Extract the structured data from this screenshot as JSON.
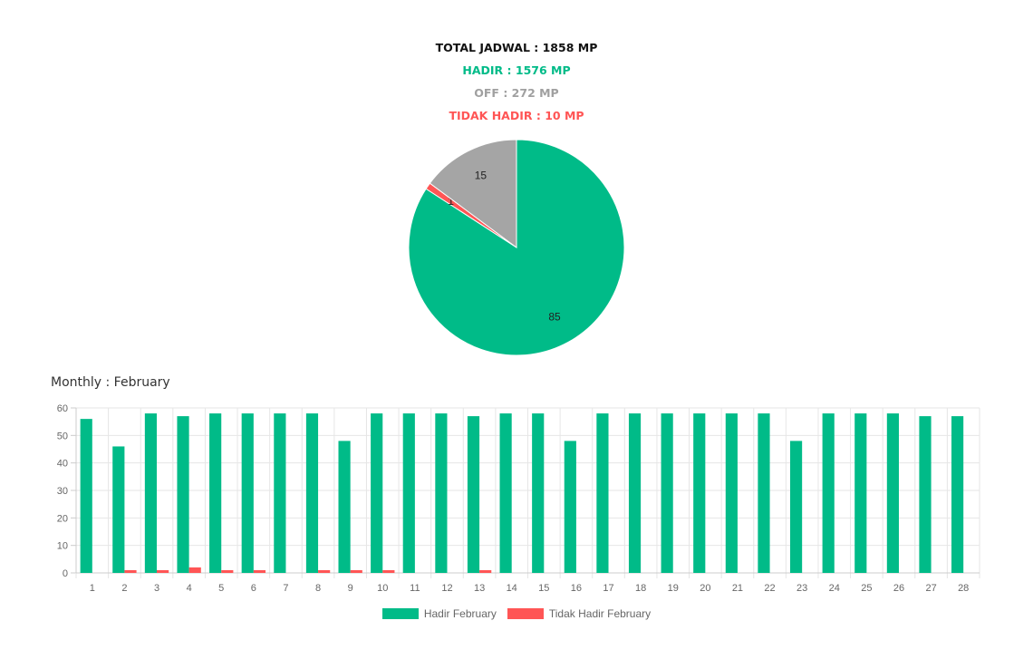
{
  "summary": {
    "total": "TOTAL JADWAL : 1858 MP",
    "hadir": "HADIR : 1576 MP",
    "off": "OFF : 272 MP",
    "tidak_hadir": "TIDAK HADIR : 10 MP"
  },
  "colors": {
    "total": "#111111",
    "hadir": "#00bb88",
    "off": "#a0a0a0",
    "tidak_hadir": "#ff5555"
  },
  "monthly_title": "Monthly : February",
  "chart_data": [
    {
      "type": "pie",
      "slices": [
        {
          "value": 85,
          "label": "85",
          "color": "#00bb88"
        },
        {
          "value": 1,
          "label": "1",
          "color": "#ff5555"
        },
        {
          "value": 15,
          "label": "15",
          "color": "#a5a5a5"
        }
      ]
    },
    {
      "type": "bar",
      "categories": [
        "1",
        "2",
        "3",
        "4",
        "5",
        "6",
        "7",
        "8",
        "9",
        "10",
        "11",
        "12",
        "13",
        "14",
        "15",
        "16",
        "17",
        "18",
        "19",
        "20",
        "21",
        "22",
        "23",
        "24",
        "25",
        "26",
        "27",
        "28"
      ],
      "series": [
        {
          "name": "Hadir February",
          "color": "#00bb88",
          "values": [
            56,
            46,
            58,
            57,
            58,
            58,
            58,
            58,
            48,
            58,
            58,
            58,
            57,
            58,
            58,
            48,
            58,
            58,
            58,
            58,
            58,
            58,
            48,
            58,
            58,
            58,
            57,
            57
          ]
        },
        {
          "name": "Tidak Hadir February",
          "color": "#ff5555",
          "values": [
            0,
            1,
            1,
            2,
            1,
            1,
            0,
            1,
            1,
            1,
            0,
            0,
            1,
            0,
            0,
            0,
            0,
            0,
            0,
            0,
            0,
            0,
            0,
            0,
            0,
            0,
            0,
            0
          ]
        }
      ],
      "ylim": [
        0,
        60
      ],
      "yticks": [
        0,
        10,
        20,
        30,
        40,
        50,
        60
      ],
      "grid": true,
      "legend_position": "bottom"
    }
  ]
}
